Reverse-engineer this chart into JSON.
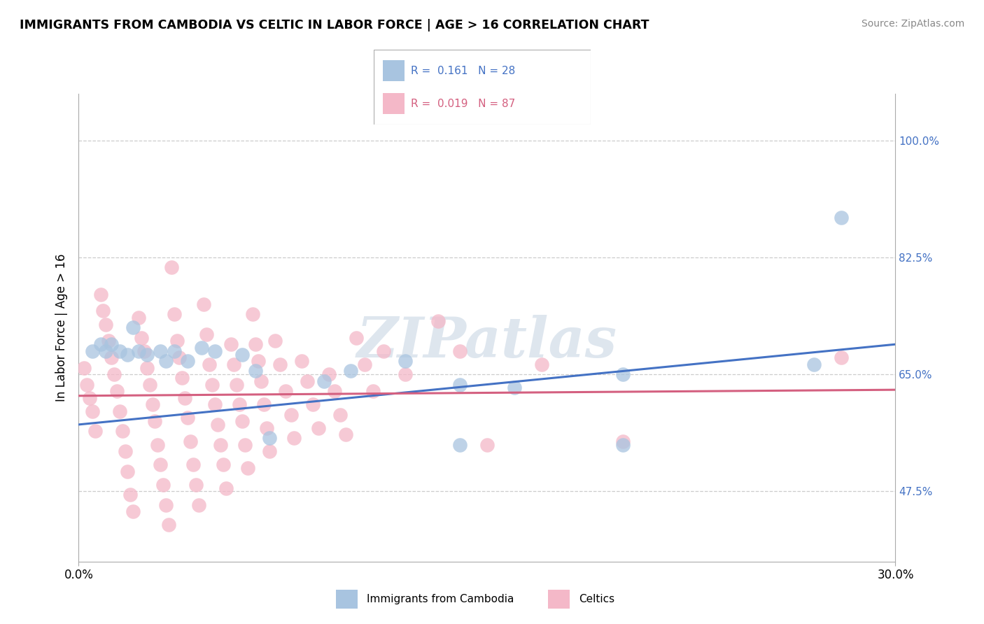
{
  "title": "IMMIGRANTS FROM CAMBODIA VS CELTIC IN LABOR FORCE | AGE > 16 CORRELATION CHART",
  "source": "Source: ZipAtlas.com",
  "ylabel": "In Labor Force | Age > 16",
  "ytick_labels": [
    "47.5%",
    "65.0%",
    "82.5%",
    "100.0%"
  ],
  "ytick_values": [
    0.475,
    0.65,
    0.825,
    1.0
  ],
  "xlim": [
    0.0,
    0.3
  ],
  "ylim": [
    0.37,
    1.07
  ],
  "watermark": "ZIPatlas",
  "blue_scatter": [
    [
      0.005,
      0.685
    ],
    [
      0.008,
      0.695
    ],
    [
      0.01,
      0.685
    ],
    [
      0.012,
      0.695
    ],
    [
      0.015,
      0.685
    ],
    [
      0.018,
      0.68
    ],
    [
      0.02,
      0.72
    ],
    [
      0.022,
      0.685
    ],
    [
      0.025,
      0.68
    ],
    [
      0.03,
      0.685
    ],
    [
      0.032,
      0.67
    ],
    [
      0.035,
      0.685
    ],
    [
      0.04,
      0.67
    ],
    [
      0.045,
      0.69
    ],
    [
      0.05,
      0.685
    ],
    [
      0.06,
      0.68
    ],
    [
      0.065,
      0.655
    ],
    [
      0.07,
      0.555
    ],
    [
      0.09,
      0.64
    ],
    [
      0.1,
      0.655
    ],
    [
      0.12,
      0.67
    ],
    [
      0.14,
      0.635
    ],
    [
      0.14,
      0.545
    ],
    [
      0.16,
      0.63
    ],
    [
      0.2,
      0.65
    ],
    [
      0.2,
      0.545
    ],
    [
      0.27,
      0.665
    ],
    [
      0.28,
      0.885
    ]
  ],
  "pink_scatter": [
    [
      0.002,
      0.66
    ],
    [
      0.003,
      0.635
    ],
    [
      0.004,
      0.615
    ],
    [
      0.005,
      0.595
    ],
    [
      0.006,
      0.565
    ],
    [
      0.008,
      0.77
    ],
    [
      0.009,
      0.745
    ],
    [
      0.01,
      0.725
    ],
    [
      0.011,
      0.7
    ],
    [
      0.012,
      0.675
    ],
    [
      0.013,
      0.65
    ],
    [
      0.014,
      0.625
    ],
    [
      0.015,
      0.595
    ],
    [
      0.016,
      0.565
    ],
    [
      0.017,
      0.535
    ],
    [
      0.018,
      0.505
    ],
    [
      0.019,
      0.47
    ],
    [
      0.02,
      0.445
    ],
    [
      0.022,
      0.735
    ],
    [
      0.023,
      0.705
    ],
    [
      0.024,
      0.685
    ],
    [
      0.025,
      0.66
    ],
    [
      0.026,
      0.635
    ],
    [
      0.027,
      0.605
    ],
    [
      0.028,
      0.58
    ],
    [
      0.029,
      0.545
    ],
    [
      0.03,
      0.515
    ],
    [
      0.031,
      0.485
    ],
    [
      0.032,
      0.455
    ],
    [
      0.033,
      0.425
    ],
    [
      0.034,
      0.81
    ],
    [
      0.035,
      0.74
    ],
    [
      0.036,
      0.7
    ],
    [
      0.037,
      0.675
    ],
    [
      0.038,
      0.645
    ],
    [
      0.039,
      0.615
    ],
    [
      0.04,
      0.585
    ],
    [
      0.041,
      0.55
    ],
    [
      0.042,
      0.515
    ],
    [
      0.043,
      0.485
    ],
    [
      0.044,
      0.455
    ],
    [
      0.046,
      0.755
    ],
    [
      0.047,
      0.71
    ],
    [
      0.048,
      0.665
    ],
    [
      0.049,
      0.635
    ],
    [
      0.05,
      0.605
    ],
    [
      0.051,
      0.575
    ],
    [
      0.052,
      0.545
    ],
    [
      0.053,
      0.515
    ],
    [
      0.054,
      0.48
    ],
    [
      0.056,
      0.695
    ],
    [
      0.057,
      0.665
    ],
    [
      0.058,
      0.635
    ],
    [
      0.059,
      0.605
    ],
    [
      0.06,
      0.58
    ],
    [
      0.061,
      0.545
    ],
    [
      0.062,
      0.51
    ],
    [
      0.064,
      0.74
    ],
    [
      0.065,
      0.695
    ],
    [
      0.066,
      0.67
    ],
    [
      0.067,
      0.64
    ],
    [
      0.068,
      0.605
    ],
    [
      0.069,
      0.57
    ],
    [
      0.07,
      0.535
    ],
    [
      0.072,
      0.7
    ],
    [
      0.074,
      0.665
    ],
    [
      0.076,
      0.625
    ],
    [
      0.078,
      0.59
    ],
    [
      0.079,
      0.555
    ],
    [
      0.082,
      0.67
    ],
    [
      0.084,
      0.64
    ],
    [
      0.086,
      0.605
    ],
    [
      0.088,
      0.57
    ],
    [
      0.092,
      0.65
    ],
    [
      0.094,
      0.625
    ],
    [
      0.096,
      0.59
    ],
    [
      0.098,
      0.56
    ],
    [
      0.102,
      0.705
    ],
    [
      0.105,
      0.665
    ],
    [
      0.108,
      0.625
    ],
    [
      0.112,
      0.685
    ],
    [
      0.12,
      0.65
    ],
    [
      0.132,
      0.73
    ],
    [
      0.14,
      0.685
    ],
    [
      0.15,
      0.545
    ],
    [
      0.17,
      0.665
    ],
    [
      0.2,
      0.55
    ],
    [
      0.28,
      0.675
    ]
  ],
  "blue_line_x": [
    0.0,
    0.3
  ],
  "blue_line_y": [
    0.575,
    0.695
  ],
  "pink_line_x": [
    0.0,
    0.3
  ],
  "pink_line_y": [
    0.618,
    0.627
  ]
}
